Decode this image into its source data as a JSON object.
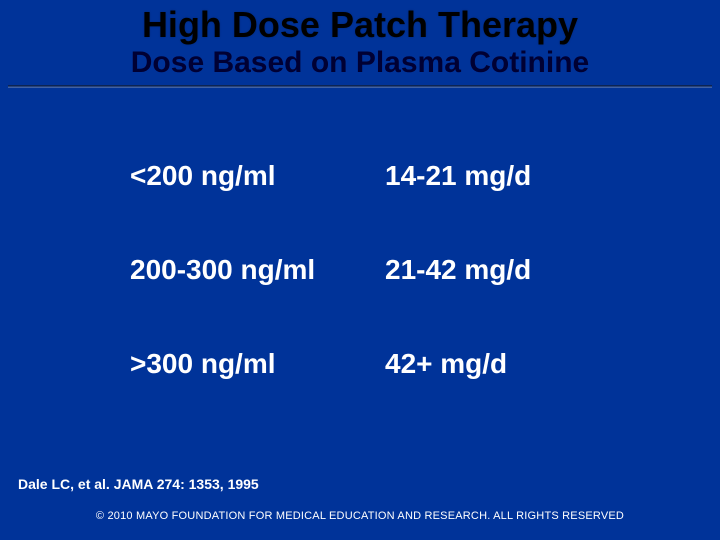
{
  "header": {
    "title": "High Dose Patch Therapy",
    "subtitle": "Dose Based on Plasma Cotinine"
  },
  "table": {
    "rows": [
      {
        "cotinine": "<200 ng/ml",
        "dose": "14-21 mg/d"
      },
      {
        "cotinine": "200-300 ng/ml",
        "dose": "21-42 mg/d"
      },
      {
        "cotinine": ">300 ng/ml",
        "dose": "42+ mg/d"
      }
    ]
  },
  "citation": "Dale LC, et al. JAMA 274: 1353, 1995",
  "copyright": "© 2010 MAYO FOUNDATION FOR MEDICAL EDUCATION AND RESEARCH.  ALL RIGHTS RESERVED"
}
